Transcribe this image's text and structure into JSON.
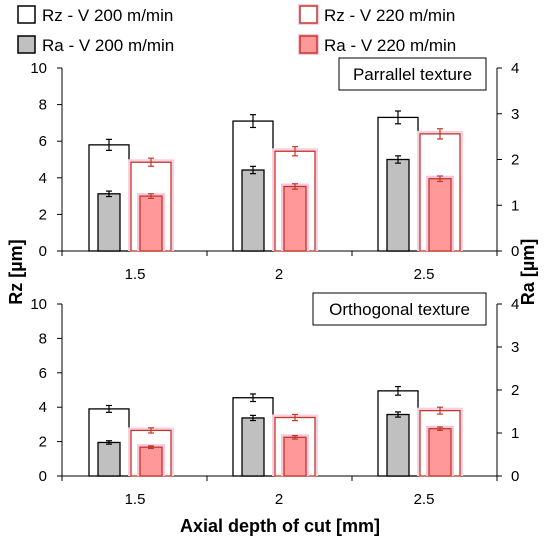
{
  "chart_data": {
    "type": "bar",
    "xlabel": "Axial depth of cut [mm]",
    "legend": {
      "placement": "top",
      "entries": [
        {
          "key": "rz200",
          "label": "Rz - V 200 m/min"
        },
        {
          "key": "rz220",
          "label": "Rz - V 220 m/min"
        },
        {
          "key": "ra200",
          "label": "Ra - V 200 m/min"
        },
        {
          "key": "ra220",
          "label": "Ra - V 220 m/min"
        }
      ]
    },
    "colors": {
      "rz200_fill": "#ffffff",
      "rz200_stroke": "#000000",
      "rz220_fill": "#ffffff",
      "rz220_stroke": "#c0392b",
      "ra200_fill": "#c0c0c0",
      "ra200_stroke": "#000000",
      "ra220_fill": "#ff9999",
      "ra220_stroke": "#c0392b",
      "ra220_glow": "#f7c6dd",
      "rz220_glow": "#f9d0e2",
      "errorbar_black": "#000000",
      "errorbar_red": "#c0392b"
    },
    "panels": [
      {
        "title": "Parrallel texture",
        "left_label": "Rz [µm]",
        "right_label": "Ra [µm]",
        "left_ylim": [
          0,
          10
        ],
        "right_ylim": [
          0,
          4
        ],
        "left_ticks": [
          "0",
          "2",
          "4",
          "6",
          "8",
          "10"
        ],
        "right_ticks": [
          "0",
          "1",
          "2",
          "3",
          "4"
        ],
        "categories": [
          "1.5",
          "2",
          "2.5"
        ],
        "series": [
          {
            "key": "rz200",
            "axis": "left",
            "values": [
              5.8,
              7.1,
              7.3
            ],
            "errors": [
              0.3,
              0.35,
              0.35
            ]
          },
          {
            "key": "ra200",
            "axis": "right",
            "values": [
              1.25,
              1.77,
              2.0
            ],
            "errors": [
              0.06,
              0.08,
              0.08
            ]
          },
          {
            "key": "rz220",
            "axis": "left",
            "values": [
              4.85,
              5.45,
              6.4
            ],
            "errors": [
              0.22,
              0.25,
              0.28
            ]
          },
          {
            "key": "ra220",
            "axis": "right",
            "values": [
              1.2,
              1.41,
              1.58
            ],
            "errors": [
              0.05,
              0.06,
              0.06
            ]
          }
        ]
      },
      {
        "title": "Orthogonal texture",
        "left_label": "Rz [µm]",
        "right_label": "Ra [µm]",
        "left_ylim": [
          0,
          10
        ],
        "right_ylim": [
          0,
          4
        ],
        "left_ticks": [
          "0",
          "2",
          "4",
          "6",
          "8",
          "10"
        ],
        "right_ticks": [
          "0",
          "1",
          "2",
          "3",
          "4"
        ],
        "categories": [
          "1.5",
          "2",
          "2.5"
        ],
        "series": [
          {
            "key": "rz200",
            "axis": "left",
            "values": [
              3.9,
              4.55,
              4.95
            ],
            "errors": [
              0.2,
              0.22,
              0.25
            ]
          },
          {
            "key": "ra200",
            "axis": "right",
            "values": [
              0.78,
              1.35,
              1.43
            ],
            "errors": [
              0.04,
              0.06,
              0.06
            ]
          },
          {
            "key": "rz220",
            "axis": "left",
            "values": [
              2.65,
              3.4,
              3.8
            ],
            "errors": [
              0.15,
              0.18,
              0.2
            ]
          },
          {
            "key": "ra220",
            "axis": "right",
            "values": [
              0.67,
              0.9,
              1.1
            ],
            "errors": [
              0.03,
              0.04,
              0.04
            ]
          }
        ]
      }
    ]
  }
}
